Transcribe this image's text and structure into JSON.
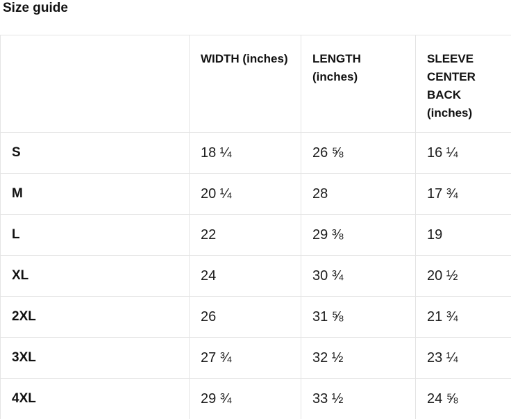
{
  "title": "Size guide",
  "table": {
    "headers": [
      "",
      "WIDTH (inches)",
      "LENGTH (inches)",
      "SLEEVE CENTER BACK (inches)"
    ],
    "rows": [
      {
        "size": "S",
        "values": [
          "18 ¼",
          "26 ⅝",
          "16 ¼"
        ]
      },
      {
        "size": "M",
        "values": [
          "20 ¼",
          "28",
          "17 ¾"
        ]
      },
      {
        "size": "L",
        "values": [
          "22",
          "29 ⅜",
          "19"
        ]
      },
      {
        "size": "XL",
        "values": [
          "24",
          "30 ¾",
          "20 ½"
        ]
      },
      {
        "size": "2XL",
        "values": [
          "26",
          "31 ⅝",
          "21 ¾"
        ]
      },
      {
        "size": "3XL",
        "values": [
          "27 ¾",
          "32 ½",
          "23 ¼"
        ]
      },
      {
        "size": "4XL",
        "values": [
          "29 ¾",
          "33 ½",
          "24 ⅝"
        ]
      }
    ]
  },
  "colors": {
    "text": "#111111",
    "value_text": "#1c1c1c",
    "border": "#e4e4e4",
    "background": "#ffffff"
  }
}
